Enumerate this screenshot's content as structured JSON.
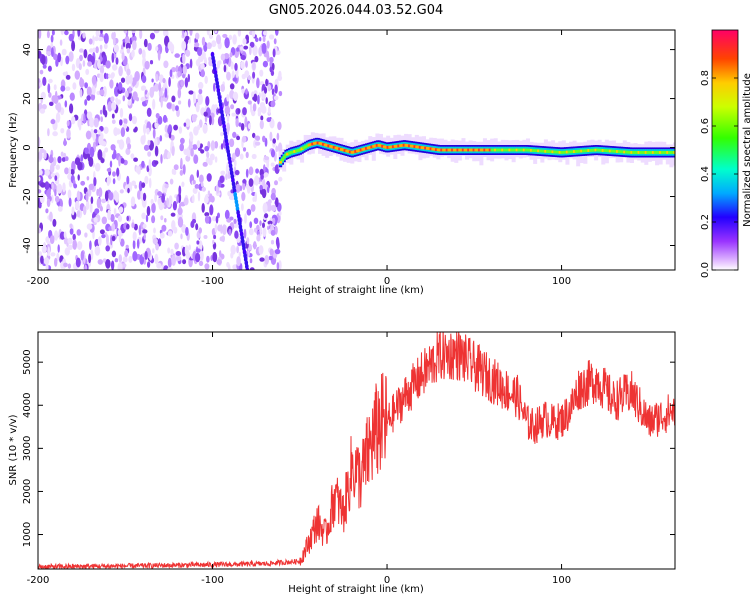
{
  "figure_title": "GN05.2026.044.03.52.G04",
  "colorbar": {
    "label": "Normalized spectral amplitude",
    "ticks": [
      0.0,
      0.2,
      0.4,
      0.6,
      0.8
    ]
  },
  "chart_data": [
    {
      "type": "heatmap",
      "xlabel": "Height of straight line (km)",
      "ylabel": "Frequency (Hz)",
      "xlim": [
        -200,
        165
      ],
      "ylim": [
        -50,
        48
      ],
      "xticks": [
        -200,
        -100,
        0,
        100
      ],
      "yticks": [
        -40,
        -20,
        0,
        20,
        40
      ],
      "grid": false,
      "noise_region": {
        "x": [
          -200,
          -61
        ],
        "y": [
          -50,
          48
        ]
      },
      "diagonal_streak": {
        "x": [
          -100,
          -80
        ],
        "y": [
          38,
          -50
        ]
      },
      "signal_band": {
        "x": [
          -61,
          -58,
          -55,
          -50,
          -45,
          -40,
          -35,
          -30,
          -25,
          -20,
          -15,
          -10,
          -5,
          0,
          10,
          20,
          30,
          40,
          60,
          80,
          100,
          120,
          140,
          165
        ],
        "center": [
          -6,
          -3,
          -2,
          -1,
          1,
          2,
          1,
          0,
          -1,
          -2,
          -1,
          0,
          1,
          0,
          1,
          0,
          -1,
          -1,
          -1,
          -1,
          -2,
          -1,
          -2,
          -2
        ]
      }
    },
    {
      "type": "line",
      "xlabel": "Height of straight line (km)",
      "ylabel": "SNR (10 * v/v)",
      "xlim": [
        -200,
        165
      ],
      "ylim": [
        200,
        5700
      ],
      "xticks": [
        -200,
        -100,
        0,
        100
      ],
      "yticks": [
        1000,
        2000,
        3000,
        4000,
        5000
      ],
      "grid": false,
      "series": [
        {
          "color": "#ee3333",
          "x": [
            -200,
            -150,
            -100,
            -70,
            -50,
            -45,
            -40,
            -35,
            -30,
            -25,
            -20,
            -15,
            -10,
            -5,
            0,
            10,
            20,
            30,
            40,
            50,
            60,
            70,
            75,
            80,
            85,
            90,
            95,
            100,
            105,
            110,
            115,
            120,
            130,
            140,
            150,
            160,
            165
          ],
          "values": [
            250,
            270,
            300,
            320,
            380,
            800,
            1300,
            1000,
            1900,
            1500,
            2600,
            2300,
            3000,
            3500,
            3600,
            4200,
            4700,
            5150,
            5200,
            4900,
            4600,
            4300,
            4200,
            3600,
            3500,
            3700,
            3600,
            3650,
            3900,
            4400,
            4500,
            4600,
            4100,
            4300,
            3600,
            3800,
            3900
          ]
        }
      ]
    }
  ]
}
